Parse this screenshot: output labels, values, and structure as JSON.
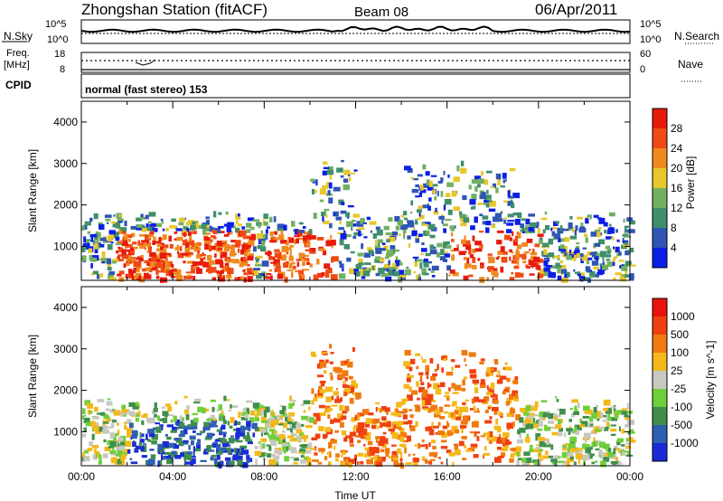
{
  "header": {
    "station": "Zhongshan Station (fitACF)",
    "beam": "Beam 08",
    "date": "06/Apr/2011"
  },
  "status_panels": {
    "nsky_label": "N.Sky",
    "nsearch_label": "N.Search",
    "nsky_ticks": [
      "10^5",
      "10^0"
    ],
    "nsky_right_ticks": [
      "10^5",
      "10^0"
    ],
    "freq_label": "Freq.",
    "freq_unit": "[MHz]",
    "freq_ticks": [
      "18",
      "8"
    ],
    "nave_label": "Nave",
    "nave_ticks": [
      "60",
      "0"
    ],
    "cpid_label": "CPID",
    "cpid_value": "normal (fast stereo) 153"
  },
  "chart_data": [
    {
      "type": "heatmap",
      "parameter": "Power",
      "ylabel": "Slant Range [km]",
      "xlabel": "",
      "x_range_hours": [
        0,
        24
      ],
      "ylim": [
        180,
        4500
      ],
      "yticks": [
        1000,
        2000,
        3000,
        4000
      ],
      "colorbar_label": "Power [dB]",
      "colorbar_ticks": [
        "4",
        "8",
        "12",
        "16",
        "20",
        "24",
        "28"
      ],
      "colorbar_colors": [
        "#0a1ee6",
        "#2f55b5",
        "#3f8f6a",
        "#72b061",
        "#e8c72a",
        "#f08a1e",
        "#f04a14",
        "#e81a0a"
      ]
    },
    {
      "type": "heatmap",
      "parameter": "Velocity",
      "ylabel": "Slant Range [km]",
      "xlabel": "Time UT",
      "x_range_hours": [
        0,
        24
      ],
      "xticks": [
        "00:00",
        "04:00",
        "08:00",
        "12:00",
        "16:00",
        "20:00",
        "00:00"
      ],
      "ylim": [
        180,
        4500
      ],
      "yticks": [
        1000,
        2000,
        3000,
        4000
      ],
      "colorbar_label": "Velocity [m s^-1]",
      "colorbar_ticks": [
        "1000",
        "500",
        "100",
        "25",
        "-25",
        "-100",
        "-500",
        "-1000"
      ],
      "colorbar_colors": [
        "#1a2ad8",
        "#2f5fb0",
        "#3f8f4a",
        "#6fcf3a",
        "#c8c8c0",
        "#f5b81a",
        "#f07a10",
        "#f04010",
        "#e8140a"
      ]
    }
  ],
  "colors": {
    "noise_dotted": "#000000",
    "freq_dotted": "#000000"
  }
}
